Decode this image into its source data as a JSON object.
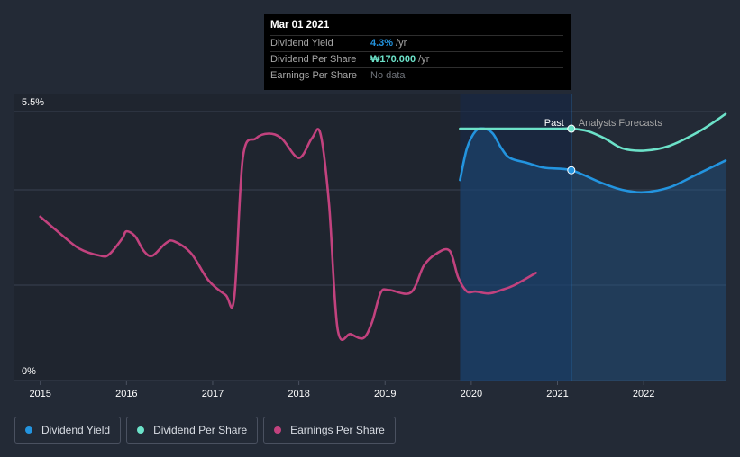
{
  "tooltip": {
    "date": "Mar 01 2021",
    "rows": [
      {
        "label": "Dividend Yield",
        "value": "4.3%",
        "unit": "/yr",
        "color": "#2394df"
      },
      {
        "label": "Dividend Per Share",
        "value": "₩170.000",
        "unit": "/yr",
        "color": "#6ce2c9"
      },
      {
        "label": "Earnings Per Share",
        "value": "No data",
        "unit": "",
        "color": "#6f737a"
      }
    ]
  },
  "section_labels": {
    "past": "Past",
    "forecast": "Analysts Forecasts"
  },
  "legend": [
    {
      "label": "Dividend Yield",
      "color": "#2394df"
    },
    {
      "label": "Dividend Per Share",
      "color": "#6ce2c9"
    },
    {
      "label": "Earnings Per Share",
      "color": "#c2427e"
    }
  ],
  "chart_data": {
    "type": "line",
    "title": "",
    "xlabel": "",
    "ylabel": "",
    "xlim": [
      2014.7,
      2022.95
    ],
    "ylim": [
      0,
      5.5
    ],
    "y_tick_labels": [
      "0%",
      "5.5%"
    ],
    "x_ticks": [
      2015,
      2016,
      2017,
      2018,
      2019,
      2020,
      2021,
      2022
    ],
    "x_tick_labels": [
      "2015",
      "2016",
      "2017",
      "2018",
      "2019",
      "2020",
      "2021",
      "2022"
    ],
    "gridlines": [
      0,
      1.95,
      3.9,
      5.5
    ],
    "past_start": 2019.87,
    "past_end": 2021.16,
    "series": [
      {
        "name": "Earnings Per Share",
        "color": "#c2427e",
        "x": [
          2015.0,
          2015.2,
          2015.45,
          2015.7,
          2015.8,
          2015.95,
          2016.0,
          2016.1,
          2016.2,
          2016.3,
          2016.45,
          2016.55,
          2016.75,
          2016.95,
          2017.15,
          2017.25,
          2017.35,
          2017.5,
          2017.65,
          2017.8,
          2018.0,
          2018.15,
          2018.25,
          2018.35,
          2018.45,
          2018.6,
          2018.75,
          2018.85,
          2018.95,
          2019.05,
          2019.3,
          2019.45,
          2019.6,
          2019.75,
          2019.85,
          2019.95,
          2020.05,
          2020.2,
          2020.35,
          2020.5,
          2020.75
        ],
        "values": [
          3.35,
          3.05,
          2.7,
          2.55,
          2.58,
          2.9,
          3.05,
          2.95,
          2.65,
          2.55,
          2.8,
          2.85,
          2.6,
          2.05,
          1.75,
          1.7,
          4.55,
          4.95,
          5.05,
          4.95,
          4.55,
          4.95,
          5.05,
          3.6,
          1.05,
          0.95,
          0.87,
          1.2,
          1.8,
          1.85,
          1.8,
          2.35,
          2.6,
          2.65,
          2.1,
          1.82,
          1.82,
          1.78,
          1.85,
          1.95,
          2.2
        ]
      },
      {
        "name": "Dividend Yield",
        "color": "#2394df",
        "x": [
          2019.87,
          2019.95,
          2020.05,
          2020.15,
          2020.25,
          2020.35,
          2020.45,
          2020.65,
          2020.85,
          2021.16,
          2021.5,
          2021.75,
          2022.0,
          2022.3,
          2022.6,
          2022.95
        ],
        "values": [
          4.1,
          4.75,
          5.1,
          5.15,
          5.05,
          4.75,
          4.55,
          4.45,
          4.35,
          4.3,
          4.05,
          3.9,
          3.85,
          3.95,
          4.2,
          4.5
        ]
      },
      {
        "name": "Dividend Per Share",
        "color": "#6ce2c9",
        "x": [
          2019.87,
          2020.2,
          2020.6,
          2021.0,
          2021.16,
          2021.35,
          2021.55,
          2021.75,
          2022.0,
          2022.3,
          2022.65,
          2022.95
        ],
        "values": [
          5.15,
          5.15,
          5.15,
          5.15,
          5.15,
          5.1,
          4.95,
          4.75,
          4.7,
          4.8,
          5.1,
          5.45
        ]
      }
    ],
    "highlight_points": [
      {
        "series": "Dividend Yield",
        "x": 2021.16,
        "value": 4.3
      },
      {
        "series": "Dividend Per Share",
        "x": 2021.16,
        "value": 5.15
      }
    ]
  }
}
